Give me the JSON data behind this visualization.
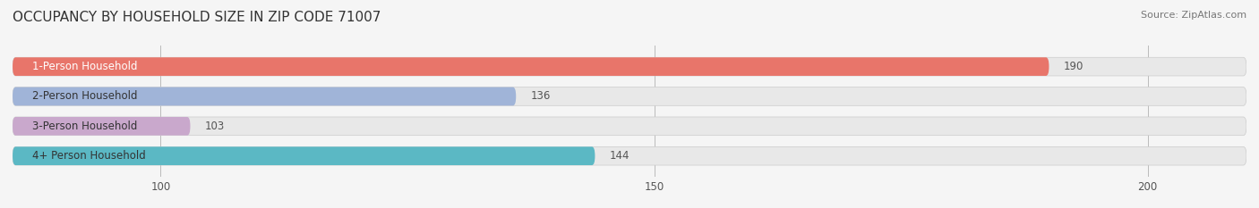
{
  "title": "OCCUPANCY BY HOUSEHOLD SIZE IN ZIP CODE 71007",
  "source": "Source: ZipAtlas.com",
  "categories": [
    "1-Person Household",
    "2-Person Household",
    "3-Person Household",
    "4+ Person Household"
  ],
  "values": [
    190,
    136,
    103,
    144
  ],
  "bar_colors": [
    "#E8756A",
    "#A0B4D8",
    "#C9A8CC",
    "#5BB8C4"
  ],
  "label_text_colors": [
    "white",
    "#333333",
    "#333333",
    "#333333"
  ],
  "xlim_min": 85,
  "xlim_max": 210,
  "xticks": [
    100,
    150,
    200
  ],
  "bar_height": 0.62,
  "background_color": "#f5f5f5",
  "bar_bg_color": "#e8e8e8",
  "title_fontsize": 11,
  "label_fontsize": 8.5,
  "value_fontsize": 8.5,
  "source_fontsize": 8
}
